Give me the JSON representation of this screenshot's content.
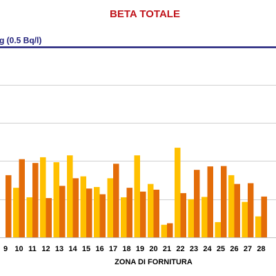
{
  "chart_data": {
    "type": "bar",
    "title": "BETA TOTALE",
    "xlabel": "ZONA DI FORNITURA",
    "ylabel": "",
    "categories": [
      "9",
      "10",
      "11",
      "12",
      "13",
      "14",
      "15",
      "16",
      "17",
      "18",
      "19",
      "20",
      "21",
      "22",
      "23",
      "24",
      "25",
      "26",
      "27",
      "28"
    ],
    "series": [
      {
        "color": "#ffc000",
        "values": [
          null,
          0.13,
          0.105,
          0.21,
          0.197,
          0.215,
          0.16,
          0.132,
          0.155,
          0.105,
          0.215,
          0.14,
          0.033,
          0.235,
          0.1,
          0.106,
          0.04,
          0.163,
          0.093,
          0.055
        ]
      },
      {
        "color": "#e36c09",
        "values": [
          0.163,
          0.205,
          0.195,
          0.103,
          0.135,
          0.155,
          0.128,
          0.113,
          0.193,
          0.13,
          0.12,
          0.125,
          0.037,
          0.116,
          0.177,
          0.186,
          0.187,
          0.14,
          0.142,
          0.107
        ]
      }
    ],
    "reference_line": {
      "value": 0.5,
      "label": "g (0.5 Bq/l)",
      "color": "#1f1f7a"
    },
    "ylim": [
      0,
      0.55
    ],
    "grid": true,
    "legend": "none"
  }
}
